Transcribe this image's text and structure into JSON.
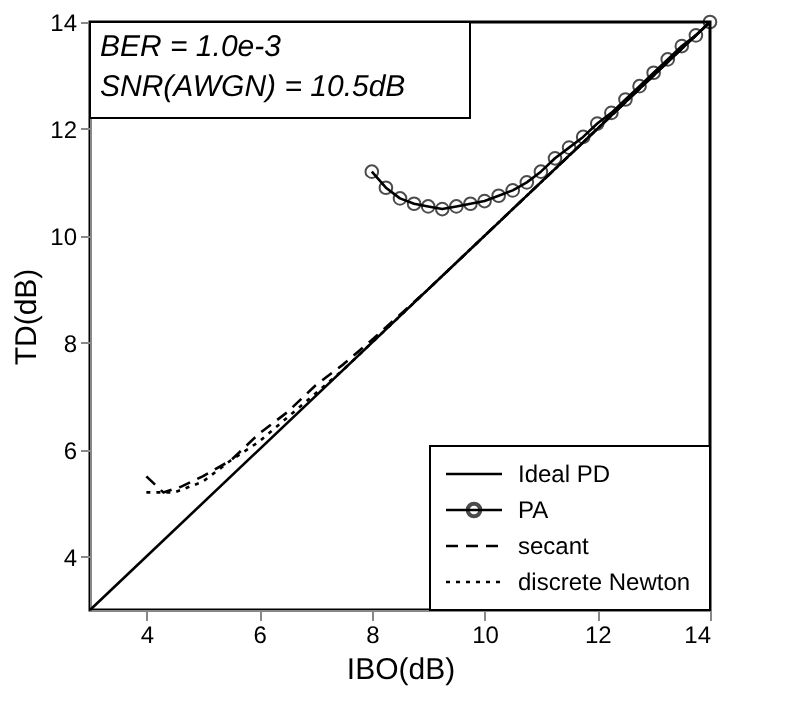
{
  "chart_data": {
    "type": "line",
    "xlabel": "IBO(dB)",
    "ylabel": "TD(dB)",
    "xlim": [
      3,
      14
    ],
    "ylim": [
      3,
      14
    ],
    "xticks": [
      4,
      6,
      8,
      10,
      12,
      14
    ],
    "yticks": [
      4,
      6,
      8,
      10,
      12,
      14
    ],
    "grid": false,
    "legend": "bottom right",
    "annotations": [
      "BER = 1.0e-3",
      "SNR(AWGN) = 10.5dB"
    ],
    "series": [
      {
        "name": "Ideal PD",
        "color": "#000000",
        "line_style": "solid",
        "x": [
          3,
          14
        ],
        "values": [
          3,
          14
        ]
      },
      {
        "name": "PA",
        "color": "#000000",
        "line_style": "solid",
        "marker": "circle",
        "x": [
          8,
          8.25,
          8.5,
          8.75,
          9,
          9.25,
          9.5,
          9.75,
          10,
          10.25,
          10.5,
          10.75,
          11,
          11.25,
          11.5,
          11.75,
          12,
          12.25,
          12.5,
          12.75,
          13,
          13.25,
          13.5,
          13.75,
          14
        ],
        "values": [
          11.2,
          10.9,
          10.7,
          10.6,
          10.55,
          10.5,
          10.55,
          10.6,
          10.65,
          10.75,
          10.85,
          11.0,
          11.2,
          11.45,
          11.65,
          11.85,
          12.1,
          12.3,
          12.55,
          12.8,
          13.05,
          13.3,
          13.55,
          13.75,
          14
        ]
      },
      {
        "name": "secant",
        "color": "#000000",
        "line_style": "dashed",
        "x": [
          4,
          4.3,
          4.6,
          5,
          5.5,
          6,
          6.5,
          7,
          7.5,
          8,
          9,
          10,
          11,
          12,
          13,
          14
        ],
        "values": [
          5.5,
          5.2,
          5.3,
          5.5,
          5.8,
          6.3,
          6.7,
          7.2,
          7.6,
          8.05,
          9,
          10,
          11,
          12,
          13,
          14
        ]
      },
      {
        "name": "discrete Newton",
        "color": "#000000",
        "line_style": "dotted",
        "x": [
          4,
          4.5,
          5,
          5.5,
          6,
          6.5,
          7,
          7.5,
          8,
          9,
          10,
          11,
          12,
          13,
          14
        ],
        "values": [
          5.2,
          5.2,
          5.4,
          5.8,
          6.15,
          6.6,
          7.05,
          7.5,
          8,
          9,
          10,
          11,
          12,
          13,
          14
        ]
      }
    ]
  }
}
